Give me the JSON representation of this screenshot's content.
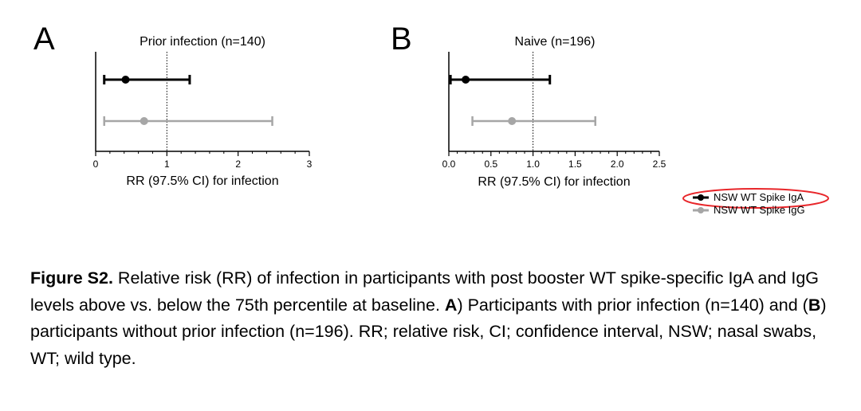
{
  "chart_data": [
    {
      "type": "forest",
      "panel_label": "A",
      "title": "Prior infection (n=140)",
      "xlabel": "RR (97.5% CI) for infection",
      "xlim": [
        0,
        3
      ],
      "xticks": [
        0,
        1,
        2,
        3
      ],
      "xtick_labels": [
        "0",
        "1",
        "2",
        "3"
      ],
      "reference_line": 1,
      "series": [
        {
          "name": "NSW WT Spike IgA",
          "color": "#000000",
          "estimate": 0.42,
          "lower": 0.12,
          "upper": 1.32
        },
        {
          "name": "NSW WT Spike IgG",
          "color": "#a6a6a6",
          "estimate": 0.68,
          "lower": 0.12,
          "upper": 2.48
        }
      ]
    },
    {
      "type": "forest",
      "panel_label": "B",
      "title": "Naive (n=196)",
      "xlabel": "RR (97.5% CI) for infection",
      "xlim": [
        0,
        2.5
      ],
      "xticks": [
        0,
        0.5,
        1,
        1.5,
        2,
        2.5
      ],
      "xtick_labels": [
        "0.0",
        "0.5",
        "1.0",
        "1.5",
        "2.0",
        "2.5"
      ],
      "reference_line": 1,
      "series": [
        {
          "name": "NSW WT Spike IgA",
          "color": "#000000",
          "estimate": 0.2,
          "lower": 0.02,
          "upper": 1.2
        },
        {
          "name": "NSW WT Spike IgG",
          "color": "#a6a6a6",
          "estimate": 0.75,
          "lower": 0.28,
          "upper": 1.74
        }
      ]
    }
  ],
  "legend": {
    "items": [
      {
        "label": "NSW WT Spike IgA",
        "color": "#000000"
      },
      {
        "label": "NSW WT Spike IgG",
        "color": "#a6a6a6"
      }
    ],
    "highlight_color": "#e8262a"
  },
  "caption": {
    "label": "Figure S2.",
    "text1": " Relative risk (RR) of infection in participants with post booster WT spike-specific IgA and IgG levels above vs. below the 75th percentile at baseline. ",
    "ref_a": "A",
    "text2": ") Participants with prior infection (n=140) and (",
    "ref_b": "B",
    "text3": ") participants without prior infection (n=196). RR; relative risk, CI; confidence interval, NSW; nasal swabs, WT; wild type."
  }
}
